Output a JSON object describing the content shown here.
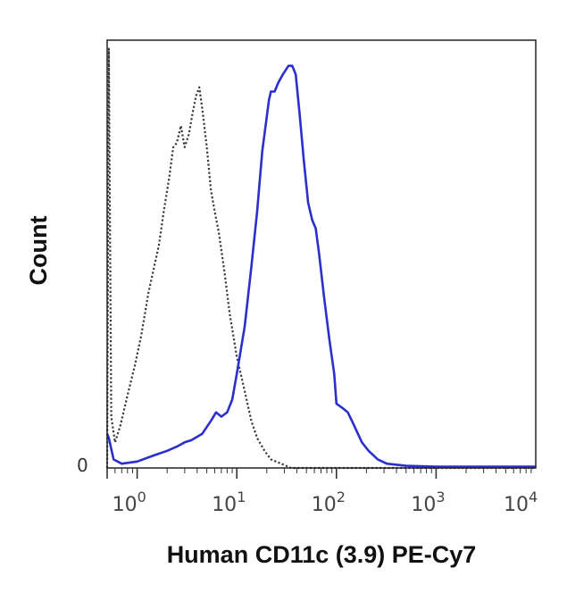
{
  "chart_data": {
    "type": "line",
    "title": "",
    "xlabel": "Human CD11c (3.9) PE-Cy7",
    "ylabel": "Count",
    "x_scale": "log",
    "xlim": [
      0.5,
      10000
    ],
    "ylim": [
      0,
      100
    ],
    "grid": false,
    "x_ticks": [
      {
        "value": 1,
        "base": "10",
        "exp": "0"
      },
      {
        "value": 10,
        "base": "10",
        "exp": "1"
      },
      {
        "value": 100,
        "base": "10",
        "exp": "2"
      },
      {
        "value": 1000,
        "base": "10",
        "exp": "3"
      },
      {
        "value": 10000,
        "base": "10",
        "exp": "4"
      }
    ],
    "y_zero_label": "0",
    "series": [
      {
        "style": "dotted",
        "color": "#3a3a3a",
        "points": [
          [
            0.5,
            0
          ],
          [
            0.52,
            98
          ],
          [
            0.55,
            12
          ],
          [
            0.6,
            6
          ],
          [
            0.68,
            10
          ],
          [
            0.8,
            17
          ],
          [
            0.95,
            24
          ],
          [
            1.1,
            31
          ],
          [
            1.3,
            41
          ],
          [
            1.45,
            46
          ],
          [
            1.65,
            52
          ],
          [
            1.85,
            60
          ],
          [
            2.1,
            68
          ],
          [
            2.3,
            75
          ],
          [
            2.5,
            76
          ],
          [
            2.75,
            80
          ],
          [
            3.0,
            75
          ],
          [
            3.3,
            78
          ],
          [
            3.6,
            83
          ],
          [
            3.9,
            87
          ],
          [
            4.2,
            89
          ],
          [
            4.5,
            84
          ],
          [
            5.0,
            75
          ],
          [
            5.5,
            65
          ],
          [
            6.0,
            60
          ],
          [
            6.6,
            55
          ],
          [
            7.5,
            46
          ],
          [
            8.5,
            36
          ],
          [
            10,
            26
          ],
          [
            12,
            18
          ],
          [
            14,
            11
          ],
          [
            16,
            7
          ],
          [
            19,
            4
          ],
          [
            22,
            2
          ],
          [
            28,
            1
          ],
          [
            35,
            0
          ],
          [
            60,
            0
          ],
          [
            10000,
            0
          ]
        ]
      },
      {
        "style": "solid",
        "color": "#2b2fcb",
        "points": [
          [
            0.5,
            8
          ],
          [
            0.52,
            7
          ],
          [
            0.58,
            2
          ],
          [
            0.7,
            1
          ],
          [
            1.0,
            1.5
          ],
          [
            1.5,
            3
          ],
          [
            2.0,
            4
          ],
          [
            2.5,
            5
          ],
          [
            3.0,
            6
          ],
          [
            3.5,
            6.5
          ],
          [
            4.5,
            8
          ],
          [
            5.5,
            11
          ],
          [
            6.2,
            13
          ],
          [
            7.0,
            12
          ],
          [
            8.0,
            13
          ],
          [
            9.0,
            16
          ],
          [
            10,
            22
          ],
          [
            12,
            33
          ],
          [
            14,
            47
          ],
          [
            16,
            60
          ],
          [
            18,
            74
          ],
          [
            21,
            86
          ],
          [
            22,
            88
          ],
          [
            24,
            88
          ],
          [
            26,
            90
          ],
          [
            29,
            92
          ],
          [
            33,
            94
          ],
          [
            36,
            94
          ],
          [
            39,
            92
          ],
          [
            43,
            82
          ],
          [
            47,
            72
          ],
          [
            52,
            62
          ],
          [
            57,
            58
          ],
          [
            62,
            56
          ],
          [
            67,
            50
          ],
          [
            75,
            40
          ],
          [
            85,
            30
          ],
          [
            95,
            22
          ],
          [
            100,
            15
          ],
          [
            115,
            14
          ],
          [
            130,
            13
          ],
          [
            150,
            10
          ],
          [
            180,
            6
          ],
          [
            210,
            4
          ],
          [
            260,
            2
          ],
          [
            320,
            1
          ],
          [
            500,
            0.5
          ],
          [
            1000,
            0.3
          ],
          [
            10000,
            0.3
          ]
        ]
      }
    ]
  }
}
